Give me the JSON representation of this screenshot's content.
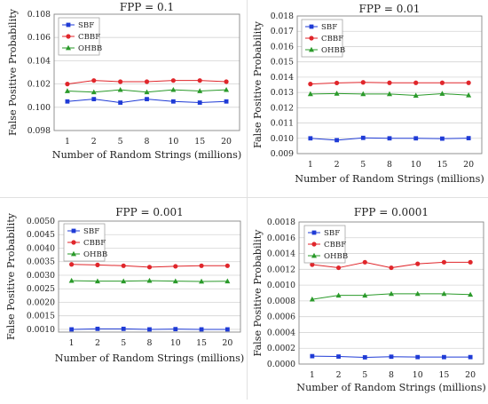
{
  "figure": {
    "shared_xlabel": "Number of Random Strings (millions)",
    "shared_ylabel": "False Positive Probability"
  },
  "colors": {
    "SBF": "#1f3bd6",
    "CBBF": "#e0262b",
    "OHBB": "#2a9a2a"
  },
  "chart_data": [
    {
      "type": "line",
      "title": "FPP = 0.1",
      "xlabel": "Number of Random Strings (millions)",
      "ylabel": "False Positive Probability",
      "categories": [
        "1",
        "2",
        "5",
        "8",
        "10",
        "15",
        "20"
      ],
      "ylim": [
        0.098,
        0.108
      ],
      "yticks": [
        "0.098",
        "0.100",
        "0.102",
        "0.104",
        "0.106",
        "0.108"
      ],
      "grid": true,
      "legend": "top-left",
      "series": [
        {
          "name": "SBF",
          "marker": "square",
          "values": [
            0.1005,
            0.1007,
            0.1004,
            0.1007,
            0.1005,
            0.1004,
            0.1005
          ]
        },
        {
          "name": "CBBF",
          "marker": "circle",
          "values": [
            0.102,
            0.1023,
            0.1022,
            0.1022,
            0.1023,
            0.1023,
            0.1022
          ]
        },
        {
          "name": "OHBB",
          "marker": "triangle",
          "values": [
            0.1014,
            0.1013,
            0.1015,
            0.1013,
            0.1015,
            0.1014,
            0.1015
          ]
        }
      ]
    },
    {
      "type": "line",
      "title": "FPP = 0.01",
      "xlabel": "Number of Random Strings (millions)",
      "ylabel": "False Positive Probability",
      "categories": [
        "1",
        "2",
        "5",
        "8",
        "10",
        "15",
        "20"
      ],
      "ylim": [
        0.009,
        0.018
      ],
      "yticks": [
        "0.009",
        "0.010",
        "0.011",
        "0.012",
        "0.013",
        "0.014",
        "0.015",
        "0.016",
        "0.017",
        "0.018"
      ],
      "grid": true,
      "legend": "top-left",
      "series": [
        {
          "name": "SBF",
          "marker": "square",
          "values": [
            0.01,
            0.00988,
            0.01003,
            0.01,
            0.01,
            0.00998,
            0.01001
          ]
        },
        {
          "name": "CBBF",
          "marker": "circle",
          "values": [
            0.01355,
            0.01362,
            0.01366,
            0.01363,
            0.01363,
            0.01363,
            0.01363
          ]
        },
        {
          "name": "OHBB",
          "marker": "triangle",
          "values": [
            0.0129,
            0.01293,
            0.0129,
            0.0129,
            0.0128,
            0.01292,
            0.01282
          ]
        }
      ]
    },
    {
      "type": "line",
      "title": "FPP = 0.001",
      "xlabel": "Number of Random Strings (millions)",
      "ylabel": "False Positive Probability",
      "categories": [
        "1",
        "2",
        "5",
        "8",
        "10",
        "15",
        "20"
      ],
      "ylim": [
        0.0009,
        0.005
      ],
      "yticks": [
        "0.0010",
        "0.0015",
        "0.0020",
        "0.0025",
        "0.0030",
        "0.0035",
        "0.0040",
        "0.0045",
        "0.0050"
      ],
      "grid": true,
      "legend": "top-left",
      "series": [
        {
          "name": "SBF",
          "marker": "square",
          "values": [
            0.001,
            0.00102,
            0.00102,
            0.001,
            0.00101,
            0.001,
            0.001
          ]
        },
        {
          "name": "CBBF",
          "marker": "circle",
          "values": [
            0.0034,
            0.00338,
            0.00335,
            0.0033,
            0.00333,
            0.00335,
            0.00335
          ]
        },
        {
          "name": "OHBB",
          "marker": "triangle",
          "values": [
            0.0028,
            0.00278,
            0.00278,
            0.0028,
            0.00278,
            0.00277,
            0.00278
          ]
        }
      ]
    },
    {
      "type": "line",
      "title": "FPP = 0.0001",
      "xlabel": "Number of Random Strings (millions)",
      "ylabel": "False Positive Probability",
      "categories": [
        "1",
        "2",
        "5",
        "8",
        "10",
        "15",
        "20"
      ],
      "ylim": [
        0.0,
        0.0018
      ],
      "yticks": [
        "0.0000",
        "0.0002",
        "0.0004",
        "0.0006",
        "0.0008",
        "0.0010",
        "0.0012",
        "0.0014",
        "0.0016",
        "0.0018"
      ],
      "grid": true,
      "legend": "top-left",
      "series": [
        {
          "name": "SBF",
          "marker": "square",
          "values": [
            0.0001,
            9.5e-05,
            8.5e-05,
            9.3e-05,
            8.8e-05,
            8.8e-05,
            8.8e-05
          ]
        },
        {
          "name": "CBBF",
          "marker": "circle",
          "values": [
            0.00126,
            0.00122,
            0.00129,
            0.00122,
            0.00127,
            0.00129,
            0.00129
          ]
        },
        {
          "name": "OHBB",
          "marker": "triangle",
          "values": [
            0.00082,
            0.00087,
            0.00087,
            0.00089,
            0.00089,
            0.00089,
            0.00088
          ]
        }
      ]
    }
  ]
}
